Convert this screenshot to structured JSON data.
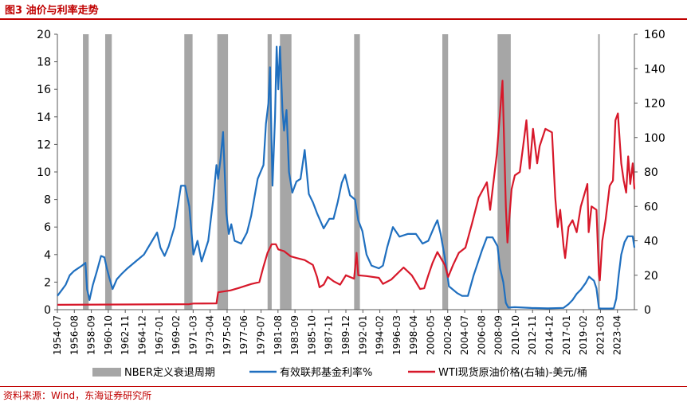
{
  "header": {
    "title": "图3  油价与利率走势"
  },
  "footer": {
    "source": "资料来源：Wind，东海证券研究所"
  },
  "colors": {
    "accent": "#c00000",
    "recession": "#a6a6a6",
    "fed": "#1f6fbf",
    "wti": "#d7182a",
    "axis": "#595959"
  },
  "chart_data": {
    "type": "line",
    "title": "油价与利率走势",
    "x_range": [
      1954.5,
      2024.5
    ],
    "x_tick_labels": [
      "1954-07",
      "1956-08",
      "1958-09",
      "1960-10",
      "1962-11",
      "1964-12",
      "1967-01",
      "1969-02",
      "1971-03",
      "1973-04",
      "1975-05",
      "1977-06",
      "1979-07",
      "1981-08",
      "1983-09",
      "1985-10",
      "1987-11",
      "1989-12",
      "1992-01",
      "1994-02",
      "1996-03",
      "1998-04",
      "2000-05",
      "2002-06",
      "2004-07",
      "2006-08",
      "2008-09",
      "2010-10",
      "2012-11",
      "2014-12",
      "2017-01",
      "2019-02",
      "2021-03",
      "2023-04"
    ],
    "y_left": {
      "min": 0,
      "max": 20,
      "ticks": [
        "0",
        "2",
        "4",
        "6",
        "8",
        "10",
        "12",
        "14",
        "16",
        "18",
        "20"
      ]
    },
    "y_right": {
      "min": 0,
      "max": 160,
      "ticks": [
        "0",
        "20",
        "40",
        "60",
        "80",
        "100",
        "120",
        "140",
        "160"
      ]
    },
    "legend": [
      "NBER定义衰退周期",
      "有效联邦基金利率%",
      "WTI现货原油价格(右轴)-美元/桶"
    ],
    "recessions": [
      [
        1957.6,
        1958.3
      ],
      [
        1960.3,
        1961.1
      ],
      [
        1969.9,
        1970.9
      ],
      [
        1973.9,
        1975.2
      ],
      [
        1980.0,
        1980.5
      ],
      [
        1981.5,
        1982.9
      ],
      [
        1990.5,
        1991.2
      ],
      [
        2001.2,
        2001.9
      ],
      [
        2007.9,
        2009.5
      ],
      [
        2020.1,
        2020.3
      ]
    ],
    "series": [
      {
        "name": "有效联邦基金利率%",
        "axis": "left",
        "points": [
          [
            1954.5,
            1.0
          ],
          [
            1955.0,
            1.4
          ],
          [
            1955.5,
            1.8
          ],
          [
            1956.0,
            2.5
          ],
          [
            1956.5,
            2.8
          ],
          [
            1957.0,
            3.0
          ],
          [
            1957.5,
            3.2
          ],
          [
            1957.9,
            3.4
          ],
          [
            1958.1,
            1.5
          ],
          [
            1958.4,
            0.7
          ],
          [
            1958.8,
            1.8
          ],
          [
            1959.3,
            2.8
          ],
          [
            1959.8,
            3.9
          ],
          [
            1960.2,
            3.8
          ],
          [
            1960.5,
            3.0
          ],
          [
            1960.8,
            2.3
          ],
          [
            1961.2,
            1.5
          ],
          [
            1961.7,
            2.2
          ],
          [
            1962.3,
            2.6
          ],
          [
            1963.0,
            3.0
          ],
          [
            1964.0,
            3.5
          ],
          [
            1965.0,
            4.0
          ],
          [
            1966.0,
            5.0
          ],
          [
            1966.6,
            5.6
          ],
          [
            1967.0,
            4.5
          ],
          [
            1967.5,
            3.9
          ],
          [
            1968.0,
            4.6
          ],
          [
            1968.7,
            6.0
          ],
          [
            1969.5,
            9.0
          ],
          [
            1970.0,
            9.0
          ],
          [
            1970.5,
            7.5
          ],
          [
            1971.0,
            4.0
          ],
          [
            1971.5,
            5.0
          ],
          [
            1972.0,
            3.5
          ],
          [
            1972.8,
            5.0
          ],
          [
            1973.4,
            8.0
          ],
          [
            1973.8,
            10.5
          ],
          [
            1974.0,
            9.5
          ],
          [
            1974.3,
            11.0
          ],
          [
            1974.6,
            12.9
          ],
          [
            1975.0,
            7.0
          ],
          [
            1975.3,
            5.5
          ],
          [
            1975.6,
            6.2
          ],
          [
            1976.0,
            5.0
          ],
          [
            1976.8,
            4.8
          ],
          [
            1977.5,
            5.6
          ],
          [
            1978.0,
            6.8
          ],
          [
            1978.8,
            9.5
          ],
          [
            1979.5,
            10.5
          ],
          [
            1979.8,
            13.5
          ],
          [
            1980.1,
            15.0
          ],
          [
            1980.3,
            17.6
          ],
          [
            1980.6,
            9.0
          ],
          [
            1980.9,
            14.0
          ],
          [
            1981.1,
            19.1
          ],
          [
            1981.3,
            16.0
          ],
          [
            1981.5,
            19.1
          ],
          [
            1981.8,
            14.5
          ],
          [
            1982.0,
            13.0
          ],
          [
            1982.3,
            14.5
          ],
          [
            1982.6,
            10.0
          ],
          [
            1983.0,
            8.5
          ],
          [
            1983.5,
            9.3
          ],
          [
            1984.0,
            9.5
          ],
          [
            1984.5,
            11.6
          ],
          [
            1985.0,
            8.4
          ],
          [
            1985.5,
            7.8
          ],
          [
            1986.0,
            7.0
          ],
          [
            1986.8,
            5.9
          ],
          [
            1987.5,
            6.6
          ],
          [
            1988.0,
            6.6
          ],
          [
            1988.5,
            7.8
          ],
          [
            1989.0,
            9.2
          ],
          [
            1989.4,
            9.8
          ],
          [
            1990.0,
            8.3
          ],
          [
            1990.6,
            8.0
          ],
          [
            1991.0,
            6.5
          ],
          [
            1991.5,
            5.7
          ],
          [
            1992.0,
            4.0
          ],
          [
            1992.6,
            3.2
          ],
          [
            1993.5,
            3.0
          ],
          [
            1994.0,
            3.2
          ],
          [
            1994.5,
            4.5
          ],
          [
            1995.2,
            6.0
          ],
          [
            1996.0,
            5.3
          ],
          [
            1997.0,
            5.5
          ],
          [
            1998.0,
            5.5
          ],
          [
            1998.8,
            4.8
          ],
          [
            1999.5,
            5.0
          ],
          [
            2000.2,
            6.0
          ],
          [
            2000.6,
            6.5
          ],
          [
            2001.0,
            5.5
          ],
          [
            2001.5,
            3.8
          ],
          [
            2002.0,
            1.7
          ],
          [
            2003.0,
            1.2
          ],
          [
            2003.6,
            1.0
          ],
          [
            2004.3,
            1.0
          ],
          [
            2005.0,
            2.5
          ],
          [
            2006.0,
            4.3
          ],
          [
            2006.6,
            5.25
          ],
          [
            2007.3,
            5.25
          ],
          [
            2007.9,
            4.6
          ],
          [
            2008.2,
            3.0
          ],
          [
            2008.6,
            2.0
          ],
          [
            2008.9,
            0.5
          ],
          [
            2009.2,
            0.15
          ],
          [
            2010.0,
            0.18
          ],
          [
            2012.0,
            0.12
          ],
          [
            2014.0,
            0.09
          ],
          [
            2015.9,
            0.13
          ],
          [
            2016.5,
            0.4
          ],
          [
            2017.0,
            0.7
          ],
          [
            2017.5,
            1.15
          ],
          [
            2018.0,
            1.45
          ],
          [
            2018.6,
            1.95
          ],
          [
            2019.0,
            2.4
          ],
          [
            2019.6,
            2.1
          ],
          [
            2019.9,
            1.55
          ],
          [
            2020.2,
            0.1
          ],
          [
            2020.5,
            0.08
          ],
          [
            2021.5,
            0.08
          ],
          [
            2022.0,
            0.1
          ],
          [
            2022.3,
            0.8
          ],
          [
            2022.6,
            2.5
          ],
          [
            2022.9,
            4.0
          ],
          [
            2023.3,
            4.9
          ],
          [
            2023.7,
            5.33
          ],
          [
            2024.3,
            5.33
          ],
          [
            2024.5,
            4.5
          ]
        ]
      },
      {
        "name": "WTI现货原油价格(右轴)-美元/桶",
        "axis": "right",
        "points": [
          [
            1954.5,
            2.8
          ],
          [
            1970.5,
            3.2
          ],
          [
            1971.0,
            3.56
          ],
          [
            1973.8,
            3.6
          ],
          [
            1974.0,
            10.1
          ],
          [
            1975.5,
            11.2
          ],
          [
            1976.5,
            12.6
          ],
          [
            1978.0,
            14.9
          ],
          [
            1979.0,
            16.0
          ],
          [
            1979.5,
            25.0
          ],
          [
            1980.0,
            33.0
          ],
          [
            1980.5,
            38.0
          ],
          [
            1981.0,
            38.0
          ],
          [
            1981.3,
            35.0
          ],
          [
            1982.0,
            34.0
          ],
          [
            1982.8,
            31.0
          ],
          [
            1983.5,
            30.0
          ],
          [
            1984.5,
            28.8
          ],
          [
            1985.5,
            26.0
          ],
          [
            1986.0,
            19.0
          ],
          [
            1986.3,
            13.0
          ],
          [
            1986.8,
            14.5
          ],
          [
            1987.3,
            19.0
          ],
          [
            1988.0,
            16.5
          ],
          [
            1988.8,
            14.5
          ],
          [
            1989.5,
            20.0
          ],
          [
            1990.5,
            18.0
          ],
          [
            1990.8,
            33.0
          ],
          [
            1991.0,
            20.0
          ],
          [
            1992.0,
            19.5
          ],
          [
            1993.5,
            18.5
          ],
          [
            1994.0,
            15.0
          ],
          [
            1995.0,
            17.5
          ],
          [
            1996.5,
            24.5
          ],
          [
            1997.5,
            20.0
          ],
          [
            1998.5,
            12.0
          ],
          [
            1999.0,
            12.5
          ],
          [
            1999.5,
            20.0
          ],
          [
            2000.0,
            27.0
          ],
          [
            2000.6,
            33.5
          ],
          [
            2001.5,
            26.0
          ],
          [
            2001.9,
            19.0
          ],
          [
            2002.5,
            26.0
          ],
          [
            2003.2,
            33.0
          ],
          [
            2004.0,
            36.0
          ],
          [
            2004.8,
            50.0
          ],
          [
            2005.6,
            65.0
          ],
          [
            2006.6,
            74.0
          ],
          [
            2007.0,
            58.0
          ],
          [
            2007.8,
            90.0
          ],
          [
            2008.5,
            133.0
          ],
          [
            2008.9,
            60.0
          ],
          [
            2009.1,
            39.0
          ],
          [
            2009.6,
            70.0
          ],
          [
            2010.0,
            78.0
          ],
          [
            2010.6,
            80.0
          ],
          [
            2011.0,
            95.0
          ],
          [
            2011.4,
            110.0
          ],
          [
            2011.8,
            82.0
          ],
          [
            2012.2,
            105.0
          ],
          [
            2012.7,
            85.0
          ],
          [
            2013.0,
            95.0
          ],
          [
            2013.7,
            105.0
          ],
          [
            2014.5,
            103.0
          ],
          [
            2014.9,
            65.0
          ],
          [
            2015.2,
            48.0
          ],
          [
            2015.5,
            58.0
          ],
          [
            2015.9,
            37.0
          ],
          [
            2016.1,
            30.0
          ],
          [
            2016.5,
            48.0
          ],
          [
            2017.0,
            52.0
          ],
          [
            2017.5,
            45.0
          ],
          [
            2018.0,
            60.0
          ],
          [
            2018.8,
            73.0
          ],
          [
            2018.95,
            45.0
          ],
          [
            2019.3,
            60.0
          ],
          [
            2019.9,
            58.0
          ],
          [
            2020.2,
            20.0
          ],
          [
            2020.3,
            17.0
          ],
          [
            2020.6,
            40.0
          ],
          [
            2021.0,
            52.0
          ],
          [
            2021.5,
            72.0
          ],
          [
            2021.9,
            75.0
          ],
          [
            2022.2,
            110.0
          ],
          [
            2022.5,
            114.0
          ],
          [
            2022.9,
            85.0
          ],
          [
            2023.2,
            75.0
          ],
          [
            2023.5,
            68.0
          ],
          [
            2023.75,
            89.0
          ],
          [
            2024.0,
            73.0
          ],
          [
            2024.3,
            85.0
          ],
          [
            2024.5,
            70.0
          ]
        ]
      }
    ]
  }
}
